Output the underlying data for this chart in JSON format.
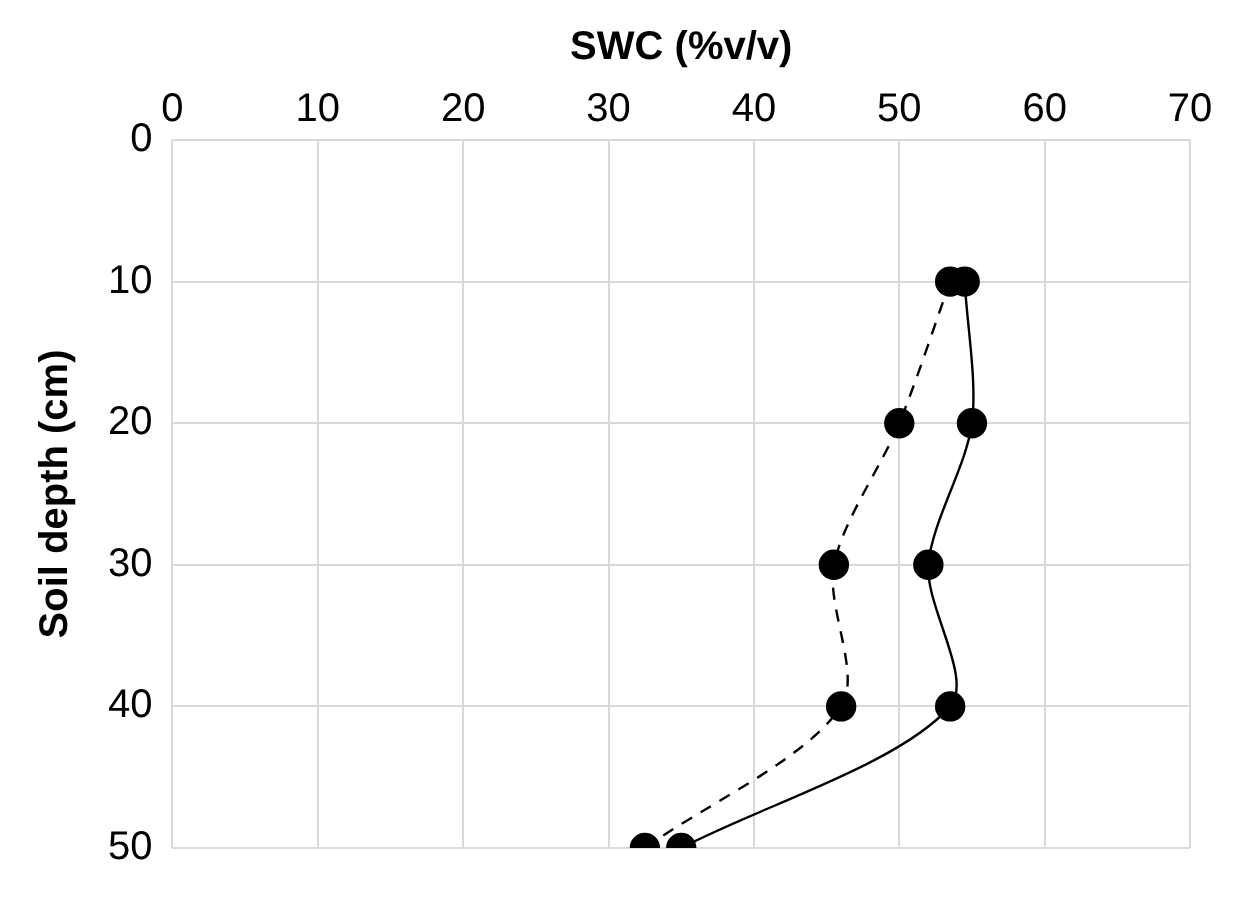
{
  "chart_data": {
    "type": "line",
    "xlabel": "SWC (%v/v)",
    "ylabel": "Soil depth (cm)",
    "xlim": [
      0,
      70
    ],
    "xticks": [
      0,
      10,
      20,
      30,
      40,
      50,
      60,
      70
    ],
    "ylim": [
      50,
      0
    ],
    "yticks": [
      0,
      10,
      20,
      30,
      40,
      50
    ],
    "grid": true,
    "marker": "circle",
    "series": [
      {
        "color": "#000000",
        "line_style": "solid",
        "x": [
          54.5,
          55,
          52,
          53.5,
          35
        ],
        "values": [
          10,
          20,
          30,
          40,
          50
        ]
      },
      {
        "color": "#000000",
        "line_style": "dashed",
        "x": [
          53.5,
          50,
          45.5,
          46,
          32.5
        ],
        "values": [
          10,
          20,
          30,
          40,
          50
        ]
      }
    ]
  }
}
